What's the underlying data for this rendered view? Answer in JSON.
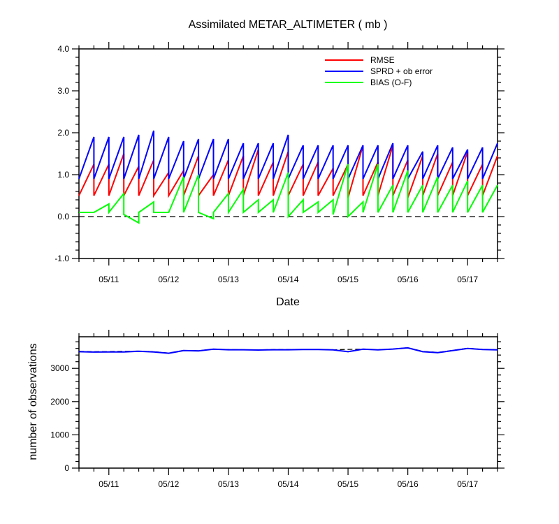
{
  "chart_data": [
    {
      "type": "line",
      "title": "Assimilated METAR_ALTIMETER ( mb )",
      "xlabel": "Date",
      "ylabel": "",
      "xlim": [
        0,
        28
      ],
      "ylim": [
        -1.0,
        4.0
      ],
      "x_tick_labels": [
        "05/11",
        "05/12",
        "05/13",
        "05/14",
        "05/15",
        "05/16",
        "05/17"
      ],
      "x_tick_positions": [
        2,
        6,
        10,
        14,
        18,
        22,
        26
      ],
      "y_ticks": [
        -1.0,
        0.0,
        1.0,
        2.0,
        3.0,
        4.0
      ],
      "y_tick_labels": [
        "-1.0",
        "0.0",
        "1.0",
        "2.0",
        "3.0",
        "4.0"
      ],
      "reference_line": 0.0,
      "legend_position": "top-right",
      "series": [
        {
          "name": "RMSE",
          "color": "#ff0000",
          "values": [
            [
              0.5,
              1.25
            ],
            [
              0.5,
              1.25
            ],
            [
              0.5,
              1.5
            ],
            [
              0.5,
              1.2
            ],
            [
              0.5,
              1.35
            ],
            [
              0.5,
              1.05
            ],
            [
              0.5,
              1.1
            ],
            [
              0.5,
              1.45
            ],
            [
              0.5,
              1.0
            ],
            [
              0.5,
              1.35
            ],
            [
              0.5,
              1.45
            ],
            [
              0.5,
              1.6
            ],
            [
              0.5,
              1.3
            ],
            [
              0.5,
              1.55
            ],
            [
              0.5,
              1.25
            ],
            [
              0.5,
              1.3
            ],
            [
              0.5,
              1.15
            ],
            [
              0.5,
              1.25
            ],
            [
              0.45,
              1.7
            ],
            [
              0.5,
              1.3
            ],
            [
              0.5,
              1.7
            ],
            [
              0.5,
              1.35
            ],
            [
              0.45,
              1.45
            ],
            [
              0.5,
              1.5
            ],
            [
              0.5,
              1.3
            ],
            [
              0.5,
              1.55
            ],
            [
              0.5,
              1.25
            ],
            [
              0.5,
              1.45
            ]
          ]
        },
        {
          "name": "SPRD + ob error",
          "color": "#0000ff",
          "values": [
            [
              0.9,
              1.9
            ],
            [
              0.9,
              1.9
            ],
            [
              0.9,
              1.9
            ],
            [
              0.9,
              1.95
            ],
            [
              0.9,
              2.05
            ],
            [
              0.9,
              1.9
            ],
            [
              0.9,
              1.8
            ],
            [
              0.9,
              1.85
            ],
            [
              0.9,
              1.85
            ],
            [
              0.9,
              1.85
            ],
            [
              0.9,
              1.75
            ],
            [
              0.9,
              1.75
            ],
            [
              0.9,
              1.75
            ],
            [
              0.9,
              1.95
            ],
            [
              0.9,
              1.7
            ],
            [
              0.9,
              1.7
            ],
            [
              0.9,
              1.7
            ],
            [
              0.9,
              1.7
            ],
            [
              0.9,
              1.7
            ],
            [
              0.9,
              1.7
            ],
            [
              0.9,
              1.75
            ],
            [
              0.9,
              1.7
            ],
            [
              0.9,
              1.55
            ],
            [
              0.9,
              1.7
            ],
            [
              0.9,
              1.65
            ],
            [
              0.9,
              1.6
            ],
            [
              0.9,
              1.65
            ],
            [
              0.9,
              1.75
            ]
          ]
        },
        {
          "name": "BIAS (O-F)",
          "color": "#00ff00",
          "values": [
            [
              0.1,
              0.1
            ],
            [
              0.1,
              0.3
            ],
            [
              0.1,
              0.55
            ],
            [
              0.05,
              -0.15
            ],
            [
              0.1,
              0.35
            ],
            [
              0.1,
              0.1
            ],
            [
              0.1,
              0.95
            ],
            [
              0.1,
              1.0
            ],
            [
              0.1,
              -0.05
            ],
            [
              0.1,
              0.55
            ],
            [
              0.1,
              0.65
            ],
            [
              0.1,
              0.4
            ],
            [
              0.1,
              0.4
            ],
            [
              0.1,
              1.05
            ],
            [
              0.0,
              0.4
            ],
            [
              0.1,
              0.35
            ],
            [
              0.1,
              0.4
            ],
            [
              0.05,
              1.25
            ],
            [
              0.0,
              0.35
            ],
            [
              0.1,
              1.25
            ],
            [
              0.1,
              0.75
            ],
            [
              0.1,
              1.1
            ],
            [
              0.1,
              0.75
            ],
            [
              0.1,
              0.95
            ],
            [
              0.1,
              0.75
            ],
            [
              0.1,
              0.85
            ],
            [
              0.1,
              0.75
            ],
            [
              0.1,
              0.75
            ]
          ]
        }
      ]
    },
    {
      "type": "line",
      "title": "",
      "xlabel": "",
      "ylabel": "number of observations",
      "xlim": [
        0,
        28
      ],
      "ylim": [
        0,
        3950
      ],
      "x_tick_labels": [
        "05/11",
        "05/12",
        "05/13",
        "05/14",
        "05/15",
        "05/16",
        "05/17"
      ],
      "x_tick_positions": [
        2,
        6,
        10,
        14,
        18,
        22,
        26
      ],
      "y_ticks": [
        0,
        1000,
        2000,
        3000
      ],
      "y_tick_labels": [
        "0",
        "1000",
        "2000",
        "3000"
      ],
      "series": [
        {
          "color": "#000000",
          "dashed": true,
          "x": [
            0,
            1,
            2,
            3,
            4,
            5,
            6,
            7,
            8,
            9,
            10,
            11,
            12,
            13,
            14,
            15,
            16,
            17,
            18,
            19,
            20,
            21,
            22,
            23,
            24,
            25,
            26,
            27,
            28
          ],
          "values": [
            3510,
            3500,
            3505,
            3510,
            3520,
            3500,
            3460,
            3540,
            3530,
            3580,
            3565,
            3560,
            3555,
            3565,
            3565,
            3570,
            3570,
            3560,
            3570,
            3575,
            3560,
            3580,
            3620,
            3510,
            3480,
            3540,
            3605,
            3570,
            3560
          ]
        },
        {
          "color": "#0000ff",
          "dashed": false,
          "x": [
            0,
            1,
            2,
            3,
            4,
            5,
            6,
            7,
            8,
            9,
            10,
            11,
            12,
            13,
            14,
            15,
            16,
            17,
            18,
            19,
            20,
            21,
            22,
            23,
            24,
            25,
            26,
            27,
            28
          ],
          "values": [
            3500,
            3490,
            3495,
            3495,
            3515,
            3495,
            3455,
            3535,
            3525,
            3575,
            3560,
            3560,
            3550,
            3560,
            3560,
            3565,
            3565,
            3555,
            3500,
            3575,
            3555,
            3580,
            3615,
            3500,
            3470,
            3535,
            3600,
            3565,
            3555
          ]
        }
      ]
    }
  ]
}
